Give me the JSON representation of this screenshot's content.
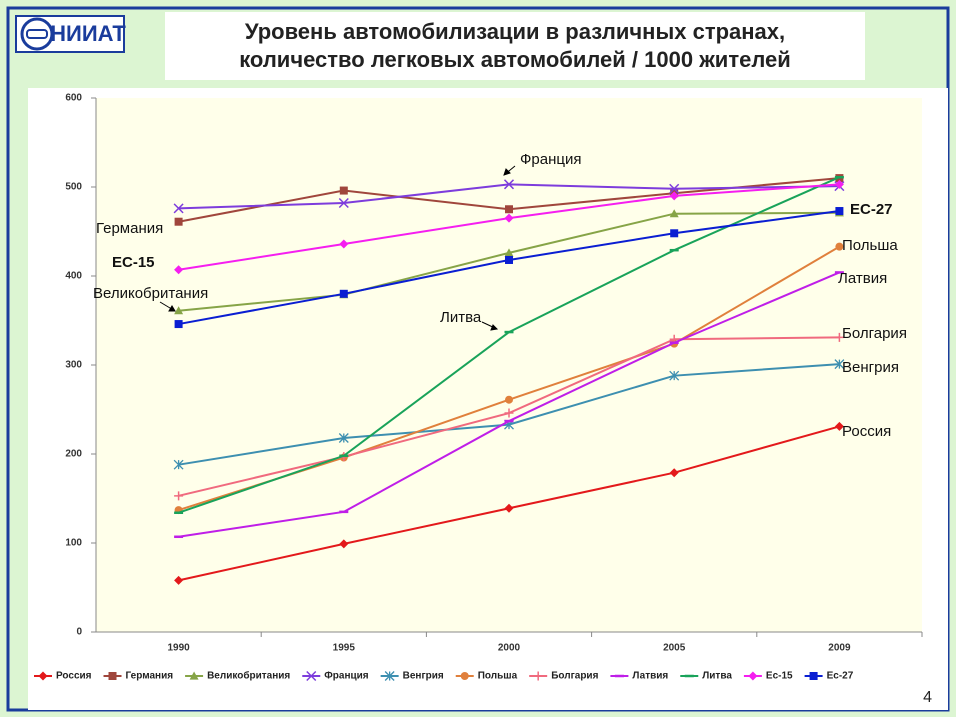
{
  "logo": "НИИАТ",
  "page_number": "4",
  "chart_data": {
    "type": "line",
    "title": "Уровень автомобилизации в различных странах,",
    "subtitle": "количество легковых автомобилей / 1000 жителей",
    "categories": [
      "1990",
      "1995",
      "2000",
      "2005",
      "2009"
    ],
    "ylim": [
      0,
      600
    ],
    "yticks": [
      0,
      100,
      200,
      300,
      400,
      500,
      600
    ],
    "grid": false,
    "legend": "bottom",
    "series": [
      {
        "name": "Россия",
        "color": "#e3191b",
        "marker": "diamond",
        "values": [
          58,
          99,
          139,
          179,
          231
        ]
      },
      {
        "name": "Германия",
        "color": "#a0463c",
        "marker": "square",
        "values": [
          461,
          496,
          475,
          493,
          510
        ]
      },
      {
        "name": "Великобритания",
        "color": "#86a447",
        "marker": "triangle",
        "values": [
          361,
          379,
          426,
          470,
          471
        ]
      },
      {
        "name": "Франция",
        "color": "#7d3cdc",
        "marker": "x",
        "values": [
          476,
          482,
          503,
          498,
          501
        ]
      },
      {
        "name": "Венгрия",
        "color": "#3d8fb0",
        "marker": "asterisk",
        "values": [
          188,
          218,
          233,
          288,
          301
        ]
      },
      {
        "name": "Польша",
        "color": "#e0803c",
        "marker": "circle",
        "values": [
          137,
          196,
          261,
          324,
          433
        ]
      },
      {
        "name": "Болгария",
        "color": "#f06a7e",
        "marker": "plus",
        "values": [
          153,
          197,
          246,
          329,
          331
        ]
      },
      {
        "name": "Латвия",
        "color": "#bf1ee8",
        "marker": "dash",
        "values": [
          107,
          135,
          237,
          325,
          404
        ]
      },
      {
        "name": "Литва",
        "color": "#19a35a",
        "marker": "dash",
        "values": [
          134,
          198,
          337,
          429,
          511
        ]
      },
      {
        "name": "Ес-15",
        "color": "#f51ef0",
        "marker": "diamond",
        "values": [
          407,
          436,
          465,
          490,
          503
        ]
      },
      {
        "name": "Ес-27",
        "color": "#0a1ed2",
        "marker": "square",
        "values": [
          346,
          380,
          418,
          448,
          473
        ]
      }
    ],
    "annotations": [
      "Франция",
      "Германия",
      "ЕС-15",
      "Великобритания",
      "Литва",
      "ЕС-27",
      "Польша",
      "Латвия",
      "Болгария",
      "Венгрия",
      "Россия"
    ]
  }
}
